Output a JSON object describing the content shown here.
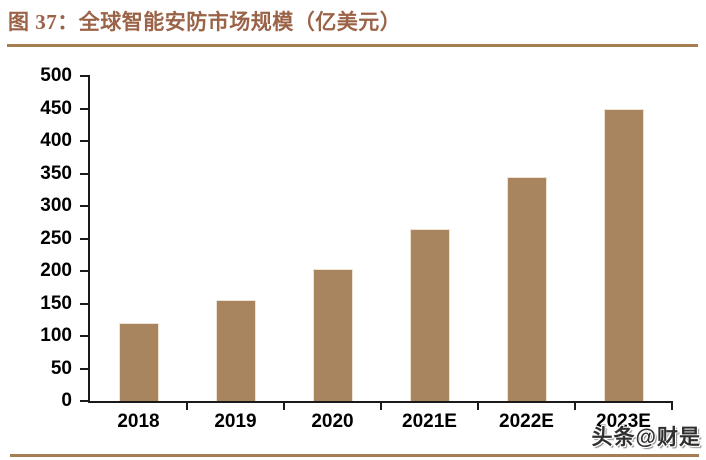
{
  "title": "图 37：全球智能安防市场规模（亿美元）",
  "watermark": "头条@财是",
  "colors": {
    "title_text": "#9A6347",
    "rule": "#A67E52",
    "bar_fill": "#A8855E",
    "bar_edge": "#EDE3D3",
    "axis": "#1a1a1a",
    "tick_label": "#000000",
    "watermark_text": "#2f2f2f",
    "background": "#ffffff"
  },
  "chart_data": {
    "type": "bar",
    "title": "全球智能安防市场规模（亿美元）",
    "categories": [
      "2018",
      "2019",
      "2020",
      "2021E",
      "2022E",
      "2023E"
    ],
    "values": [
      120,
      155,
      203,
      265,
      345,
      450
    ],
    "xlabel": "",
    "ylabel": "",
    "ylim": [
      0,
      500
    ],
    "yticks": [
      0,
      50,
      100,
      150,
      200,
      250,
      300,
      350,
      400,
      450,
      500
    ],
    "grid": false,
    "legend": null,
    "bar_color": "#A8855E"
  }
}
